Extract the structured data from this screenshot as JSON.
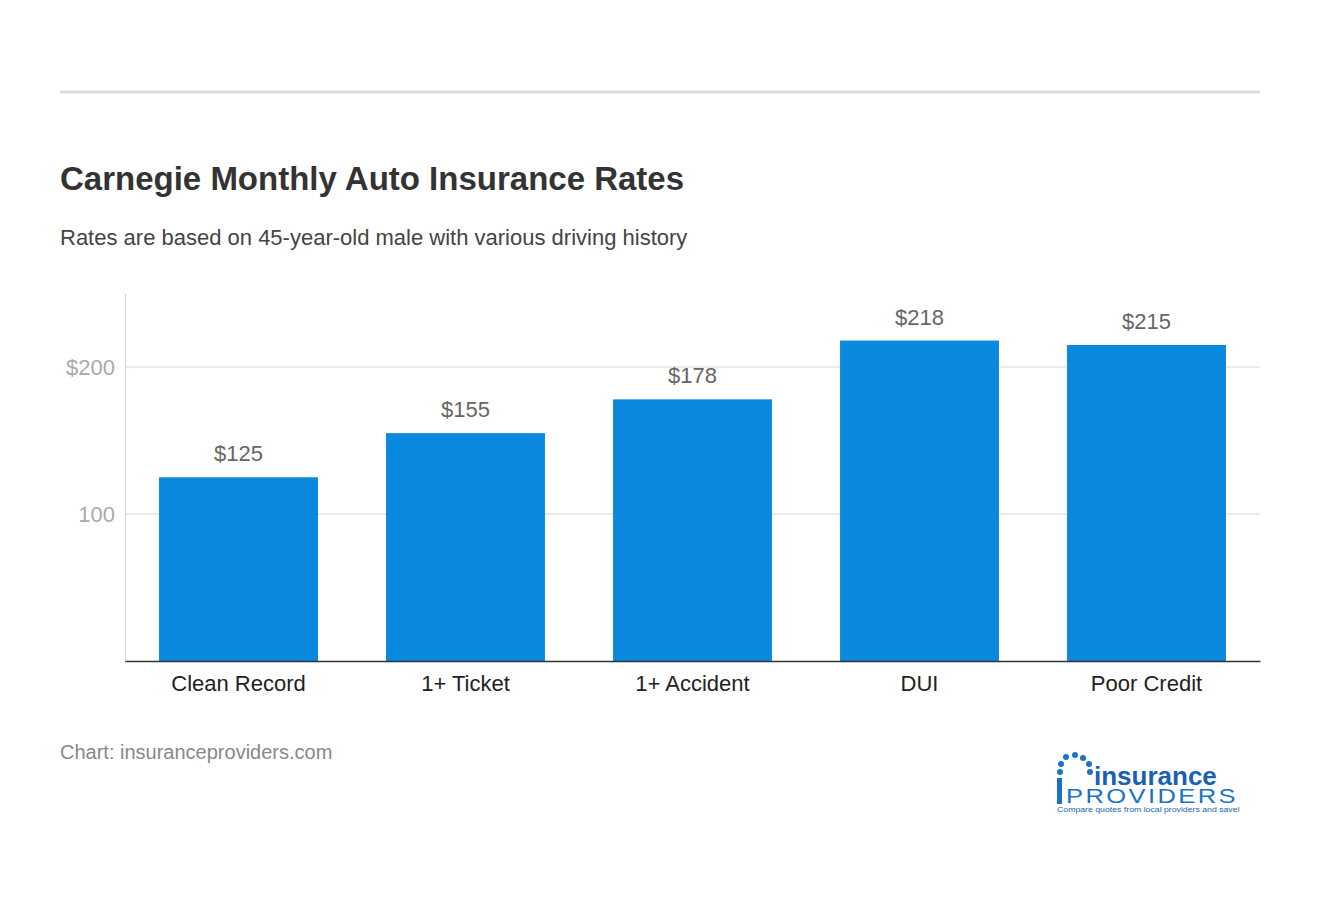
{
  "chart_data": {
    "type": "bar",
    "title": "Carnegie Monthly Auto Insurance Rates",
    "subtitle": "Rates are based on 45-year-old male with various driving history",
    "categories": [
      "Clean Record",
      "1+ Ticket",
      "1+ Accident",
      "DUI",
      "Poor Credit"
    ],
    "values": [
      125,
      155,
      178,
      218,
      215
    ],
    "value_labels": [
      "$125",
      "$155",
      "$178",
      "$218",
      "$215"
    ],
    "data_labels": true,
    "color": "#0a89de",
    "ylim": [
      0,
      250
    ],
    "yticks": [
      100,
      {
        "value": 200,
        "label": "$200"
      }
    ],
    "grid": true,
    "source": "Chart: insuranceproviders.com",
    "logo_text": [
      "insurance",
      "PROVIDERS",
      "Compare quotes from local providers and save!"
    ]
  }
}
